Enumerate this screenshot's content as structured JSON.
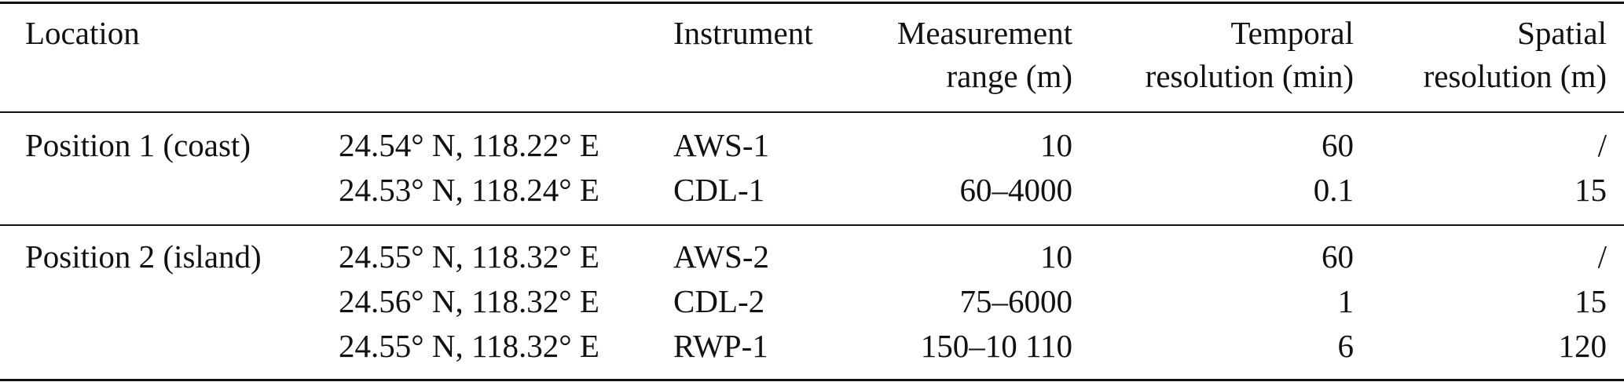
{
  "table": {
    "header": {
      "location": "Location",
      "instrument": "Instrument",
      "measurement_range": [
        "Measurement",
        "range (m)"
      ],
      "temporal_resolution": [
        "Temporal",
        "resolution (min)"
      ],
      "spatial_resolution": [
        "Spatial",
        "resolution (m)"
      ]
    },
    "groups": [
      {
        "location": "Position 1 (coast)",
        "rows": [
          [
            "24.54° N, 118.22° E",
            "AWS-1",
            "10",
            "60",
            "/"
          ],
          [
            "24.53° N, 118.24° E",
            "CDL-1",
            "60–4000",
            "0.1",
            "15"
          ]
        ]
      },
      {
        "location": "Position 2 (island)",
        "rows": [
          [
            "24.55° N, 118.32° E",
            "AWS-2",
            "10",
            "60",
            "/"
          ],
          [
            "24.56° N, 118.32° E",
            "CDL-2",
            "75–6000",
            "1",
            "15"
          ],
          [
            "24.55° N, 118.32° E",
            "RWP-1",
            "150–10 110",
            "6",
            "120"
          ]
        ]
      }
    ]
  }
}
